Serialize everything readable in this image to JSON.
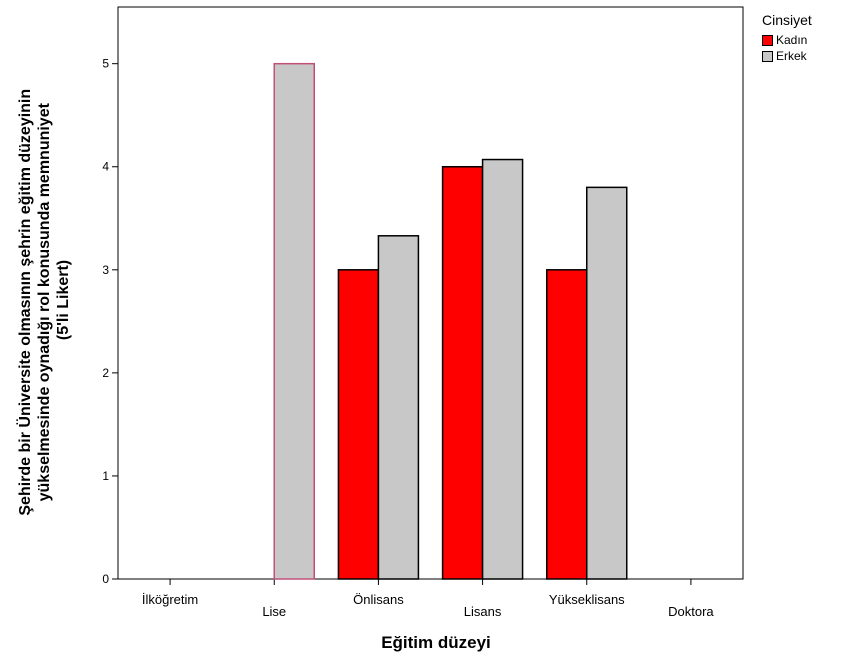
{
  "chart_data": {
    "type": "bar",
    "xlabel": "Eğitim düzeyi",
    "ylabel_lines": [
      "Şehirde bir Üniversite olmasının şehrin eğitim düzeyinin",
      "yükselmesinde oynadığı rol konusunda memnuniyet",
      "(5'li Likert)"
    ],
    "categories": [
      "İlköğretim",
      "Lise",
      "Önlisans",
      "Lisans",
      "Yükseklisans",
      "Doktora"
    ],
    "yticks": [
      "0",
      "1",
      "2",
      "3",
      "4",
      "5"
    ],
    "ylim": [
      0,
      5.55
    ],
    "legend_title": "Cinsiyet",
    "legend_position": "top-right",
    "series": [
      {
        "name": "Kadın",
        "color": "#ff0000",
        "values": [
          null,
          null,
          3.0,
          4.0,
          3.0,
          null
        ]
      },
      {
        "name": "Erkek",
        "color": "#c8c8c8",
        "values": [
          null,
          5.0,
          3.33,
          4.07,
          3.8,
          null
        ]
      }
    ]
  }
}
